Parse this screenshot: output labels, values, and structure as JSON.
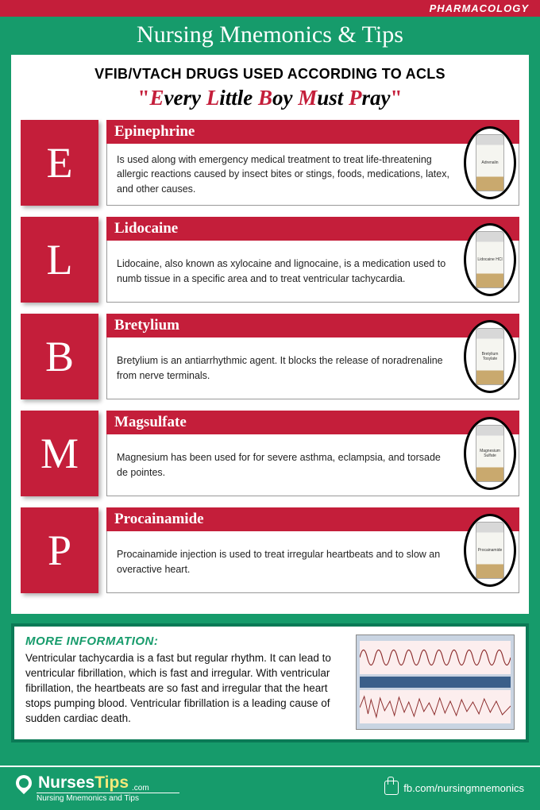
{
  "colors": {
    "background": "#169b6b",
    "accent_red": "#c41e3a",
    "white": "#ffffff",
    "info_border": "#0b7a56",
    "brand_yellow": "#f5e97a"
  },
  "header": {
    "category": "PHARMACOLOGY"
  },
  "title": "Nursing Mnemonics & Tips",
  "subtitle": "VFIB/VTACH DRUGS USED ACCORDING TO ACLS",
  "mnemonic": {
    "full": "\"Every Little Boy Must Pray\"",
    "words": [
      {
        "initial": "E",
        "rest": "very"
      },
      {
        "initial": "L",
        "rest": "ittle"
      },
      {
        "initial": "B",
        "rest": "oy"
      },
      {
        "initial": "M",
        "rest": "ust"
      },
      {
        "initial": "P",
        "rest": "ray"
      }
    ]
  },
  "drugs": [
    {
      "letter": "E",
      "name": "Epinephrine",
      "description": "Is used along with emergency medical treatment to treat life-threatening allergic reactions caused by insect bites or stings, foods, medications, latex, and other causes.",
      "vial_label": "Adrenalin"
    },
    {
      "letter": "L",
      "name": "Lidocaine",
      "description": "Lidocaine, also known as xylocaine and lignocaine, is a medication used to numb tissue in a specific area and to treat ventricular tachycardia.",
      "vial_label": "Lidocaine HCl"
    },
    {
      "letter": "B",
      "name": "Bretylium",
      "description": "Bretylium is an antiarrhythmic agent. It blocks the release of noradrenaline from nerve terminals.",
      "vial_label": "Bretylium Tosylate"
    },
    {
      "letter": "M",
      "name": "Magsulfate",
      "description": "Magnesium has been used for for severe asthma, eclampsia, and torsade de pointes.",
      "vial_label": "Magnesium Sulfate"
    },
    {
      "letter": "P",
      "name": "Procainamide",
      "description": "Procainamide injection is used to treat irregular heartbeats and to slow an overactive heart.",
      "vial_label": "Procainamide"
    }
  ],
  "info": {
    "heading": "MORE INFORMATION:",
    "body": "Ventricular tachycardia is a fast but regular rhythm. It can lead to ventricular fibrillation, which is fast and irregular. With ventricular fibrillation, the heartbeats are so fast and irregular that the heart stops pumping blood. Ventricular fibrillation is a leading cause of sudden cardiac death.",
    "ecg": {
      "strip1_type": "vtach_regular",
      "strip2_type": "vfib_irregular",
      "grid_color": "#f3c9c9",
      "trace_color": "#8a2a2a"
    }
  },
  "footer": {
    "brand_main": "Nurses",
    "brand_alt": "Tips",
    "brand_suffix": ".com",
    "brand_tagline": "Nursing Mnemonics and Tips",
    "social": "fb.com/nursingmnemonics"
  }
}
